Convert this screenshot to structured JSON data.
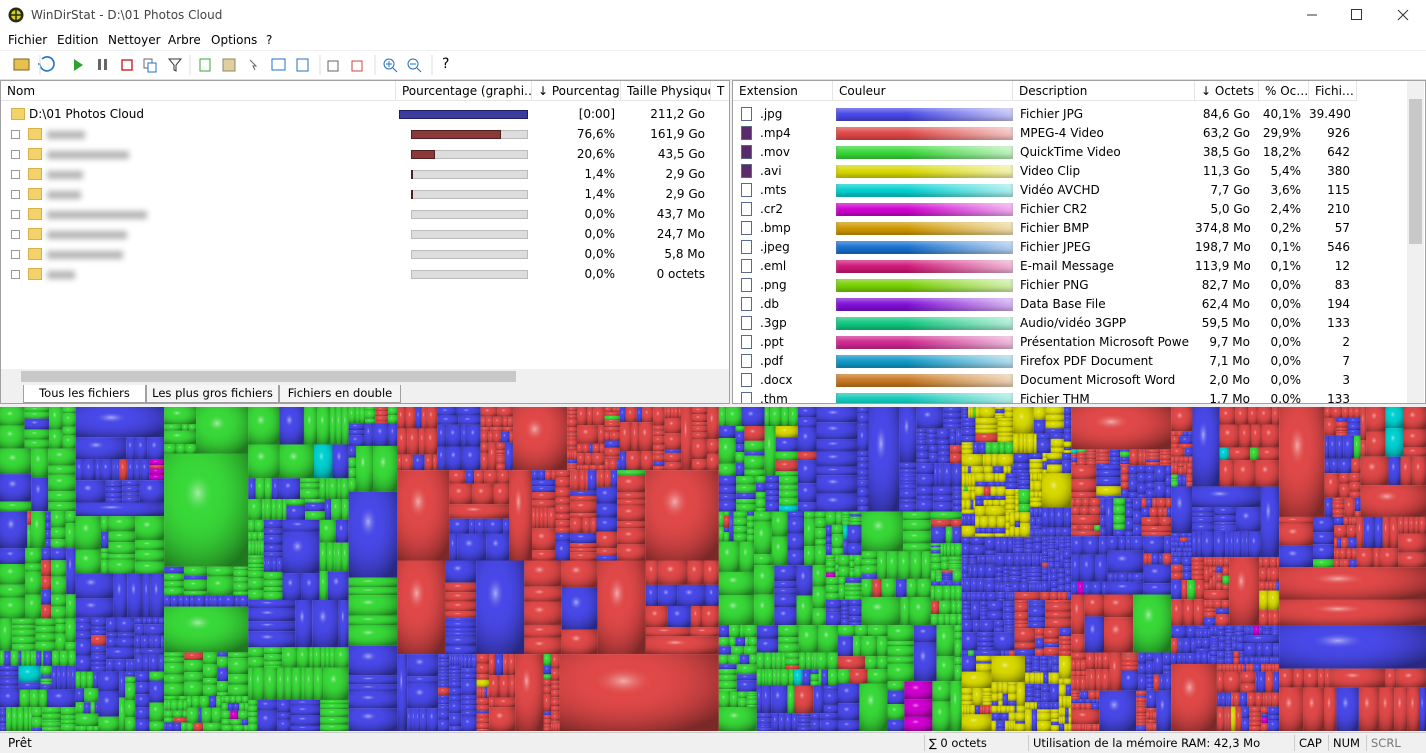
{
  "window": {
    "title": "WinDirStat - D:\\01 Photos Cloud"
  },
  "menu": [
    "Fichier",
    "Edition",
    "Nettoyer",
    "Arbre",
    "Options",
    "?"
  ],
  "toolbar": {
    "help": "?"
  },
  "tree": {
    "columns": [
      "Nom",
      "Pourcentage (graphi…",
      "↓ Pourcentage",
      "Taille Physique",
      "T"
    ],
    "root": {
      "name": "D:\\01 Photos Cloud",
      "percent_label": "[0:00]",
      "size": "211,2 Go"
    },
    "rows": [
      {
        "percent": 76.6,
        "percent_label": "76,6%",
        "size": "161,9 Go"
      },
      {
        "percent": 20.6,
        "percent_label": "20,6%",
        "size": "43,5 Go"
      },
      {
        "percent": 1.4,
        "percent_label": "1,4%",
        "size": "2,9 Go"
      },
      {
        "percent": 1.4,
        "percent_label": "1,4%",
        "size": "2,9 Go"
      },
      {
        "percent": 0.0,
        "percent_label": "0,0%",
        "size": "43,7 Mo"
      },
      {
        "percent": 0.0,
        "percent_label": "0,0%",
        "size": "24,7 Mo"
      },
      {
        "percent": 0.0,
        "percent_label": "0,0%",
        "size": "5,8 Mo"
      },
      {
        "percent": 0.0,
        "percent_label": "0,0%",
        "size": "0 octets"
      }
    ]
  },
  "tabs": [
    "Tous les fichiers",
    "Les plus gros fichiers",
    "Fichiers en double"
  ],
  "extensions": {
    "columns": [
      "Extension",
      "Couleur",
      "Description",
      "↓ Octets",
      "% Oc…",
      "Fichi…"
    ],
    "rows": [
      {
        "ext": ".jpg",
        "color": "#4848e8",
        "description": "Fichier JPG",
        "bytes": "84,6 Go",
        "percent": "40,1%",
        "files": "39.490"
      },
      {
        "ext": ".mp4",
        "color": "#e04848",
        "description": "MPEG-4 Video",
        "bytes": "63,2 Go",
        "percent": "29,9%",
        "files": "926"
      },
      {
        "ext": ".mov",
        "color": "#38d838",
        "description": "QuickTime Video",
        "bytes": "38,5 Go",
        "percent": "18,2%",
        "files": "642"
      },
      {
        "ext": ".avi",
        "color": "#d8d800",
        "description": "Video Clip",
        "bytes": "11,3 Go",
        "percent": "5,4%",
        "files": "380"
      },
      {
        "ext": ".mts",
        "color": "#00d0d0",
        "description": "Vidéo AVCHD",
        "bytes": "7,7 Go",
        "percent": "3,6%",
        "files": "115"
      },
      {
        "ext": ".cr2",
        "color": "#d000d0",
        "description": "Fichier CR2",
        "bytes": "5,0 Go",
        "percent": "2,4%",
        "files": "210"
      },
      {
        "ext": ".bmp",
        "color": "#d09800",
        "description": "Fichier BMP",
        "bytes": "374,8 Mo",
        "percent": "0,2%",
        "files": "57"
      },
      {
        "ext": ".jpeg",
        "color": "#1870d0",
        "description": "Fichier JPEG",
        "bytes": "198,7 Mo",
        "percent": "0,1%",
        "files": "546"
      },
      {
        "ext": ".eml",
        "color": "#d01878",
        "description": "E-mail Message",
        "bytes": "113,9 Mo",
        "percent": "0,1%",
        "files": "12"
      },
      {
        "ext": ".png",
        "color": "#78d000",
        "description": "Fichier PNG",
        "bytes": "82,7 Mo",
        "percent": "0,0%",
        "files": "83"
      },
      {
        "ext": ".db",
        "color": "#8010d8",
        "description": "Data Base File",
        "bytes": "62,4 Mo",
        "percent": "0,0%",
        "files": "194"
      },
      {
        "ext": ".3gp",
        "color": "#10c880",
        "description": "Audio/vidéo 3GPP",
        "bytes": "59,5 Mo",
        "percent": "0,0%",
        "files": "133"
      },
      {
        "ext": ".ppt",
        "color": "#d02890",
        "description": "Présentation Microsoft Power...",
        "bytes": "9,7 Mo",
        "percent": "0,0%",
        "files": "2"
      },
      {
        "ext": ".pdf",
        "color": "#1098c8",
        "description": "Firefox PDF Document",
        "bytes": "7,1 Mo",
        "percent": "0,0%",
        "files": "7"
      },
      {
        "ext": ".docx",
        "color": "#c87820",
        "description": "Document Microsoft Word",
        "bytes": "2,0 Mo",
        "percent": "0,0%",
        "files": "3"
      },
      {
        "ext": ".thm",
        "color": "#10c8b8",
        "description": "Fichier THM",
        "bytes": "1,7 Mo",
        "percent": "0,0%",
        "files": "133"
      }
    ]
  },
  "status": {
    "ready": "Prêt",
    "sum": "∑ 0 octets",
    "memory": "Utilisation de la mémoire RAM: 42,3 Mo",
    "cap": "CAP",
    "num": "NUM",
    "scrl": "SCRL"
  }
}
